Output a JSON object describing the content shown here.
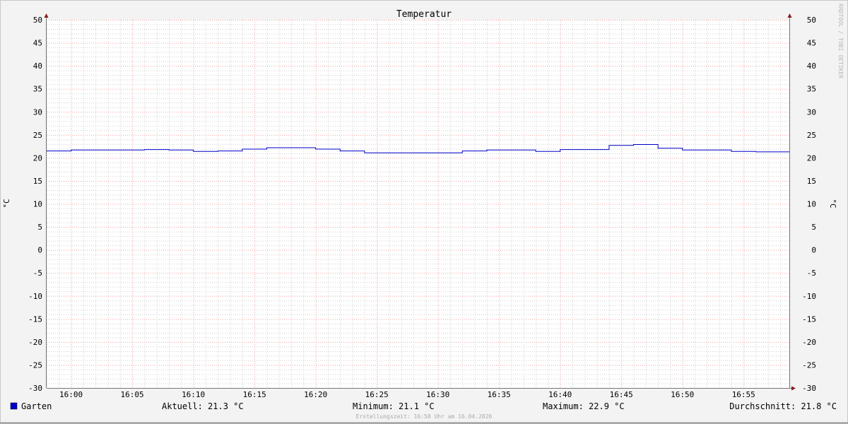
{
  "chart_data": {
    "type": "line",
    "title": "Temperatur",
    "ylabel": "°C",
    "ylabel_right": "°C",
    "ylim": [
      -30,
      50
    ],
    "yticks": [
      50,
      45,
      40,
      35,
      30,
      25,
      20,
      15,
      10,
      5,
      0,
      -5,
      -10,
      -15,
      -20,
      -25,
      -30
    ],
    "xlim": [
      "15:58",
      "16:59"
    ],
    "xticks": [
      "16:00",
      "16:05",
      "16:10",
      "16:15",
      "16:20",
      "16:25",
      "16:30",
      "16:35",
      "16:40",
      "16:45",
      "16:50",
      "16:55"
    ],
    "grid": true,
    "step": true,
    "series": [
      {
        "name": "Garten",
        "color": "#0000cc",
        "x": [
          "15:58",
          "16:00",
          "16:02",
          "16:04",
          "16:06",
          "16:08",
          "16:10",
          "16:12",
          "16:14",
          "16:16",
          "16:18",
          "16:20",
          "16:22",
          "16:24",
          "16:26",
          "16:28",
          "16:30",
          "16:32",
          "16:34",
          "16:36",
          "16:38",
          "16:40",
          "16:42",
          "16:44",
          "16:46",
          "16:48",
          "16:50",
          "16:52",
          "16:54",
          "16:56",
          "16:58"
        ],
        "values": [
          21.5,
          21.7,
          21.7,
          21.7,
          21.8,
          21.7,
          21.4,
          21.5,
          21.9,
          22.2,
          22.2,
          21.9,
          21.5,
          21.1,
          21.1,
          21.1,
          21.1,
          21.5,
          21.7,
          21.7,
          21.4,
          21.8,
          21.8,
          22.7,
          22.9,
          22.1,
          21.7,
          21.7,
          21.4,
          21.3,
          21.3
        ]
      }
    ],
    "legend": {
      "series_label": "Garten",
      "current": "Aktuell: 21.3 °C",
      "minimum": "Minimum: 21.1 °C",
      "maximum": "Maximum: 22.9 °C",
      "average": "Durchschnitt: 21.8 °C"
    },
    "footer": "Erstellungszeit: 16:58 Uhr am 16.04.2026",
    "watermark": "RRDTOOL / TOBI OETIKER"
  }
}
